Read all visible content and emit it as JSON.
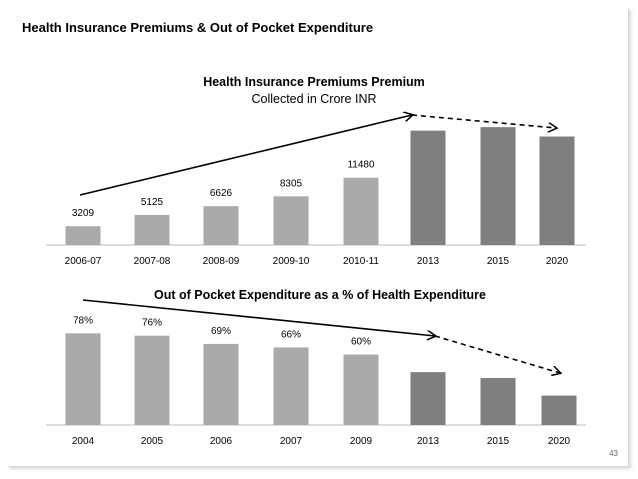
{
  "slide": {
    "title": "Health Insurance Premiums & Out of Pocket Expenditure",
    "page_number": "43"
  },
  "colors": {
    "actual_bar": "#aaaaaa",
    "projected_bar": "#7f7f7f",
    "baseline": "#bbbbbb"
  },
  "chart_data": [
    {
      "type": "bar",
      "title": "Health Insurance Premiums  Premium",
      "subtitle": "Collected in Crore INR",
      "categories": [
        "2006-07",
        "2007-08",
        "2008-09",
        "2009-10",
        "2010-11",
        "2013",
        "2015",
        "2020"
      ],
      "values": [
        3209,
        5125,
        6626,
        8305,
        11480,
        19500,
        20100,
        18500
      ],
      "data_labels": [
        "3209",
        "5125",
        "6626",
        "8305",
        "11480",
        "",
        "",
        ""
      ],
      "projected": [
        false,
        false,
        false,
        false,
        false,
        true,
        true,
        true
      ],
      "ylim": [
        0,
        22000
      ],
      "grid": false,
      "annotations": [
        "solid trend arrow rising from 2006-07 to 2013",
        "dashed trend arrow from 2013 to 2020"
      ]
    },
    {
      "type": "bar",
      "title": "Out of Pocket Expenditure as a % of Health Expenditure",
      "categories": [
        "2004",
        "2005",
        "2006",
        "2007",
        "2009",
        "2013",
        "2015",
        "2020"
      ],
      "values": [
        78,
        76,
        69,
        66,
        60,
        45,
        40,
        25
      ],
      "data_labels": [
        "78%",
        "76%",
        "69%",
        "66%",
        "60%",
        "",
        "",
        ""
      ],
      "projected": [
        false,
        false,
        false,
        false,
        false,
        true,
        true,
        true
      ],
      "ylim": [
        0,
        80
      ],
      "grid": false,
      "annotations": [
        "solid trend arrow falling from 2004 to 2013",
        "dashed trend arrow from 2013 to 2020"
      ]
    }
  ]
}
